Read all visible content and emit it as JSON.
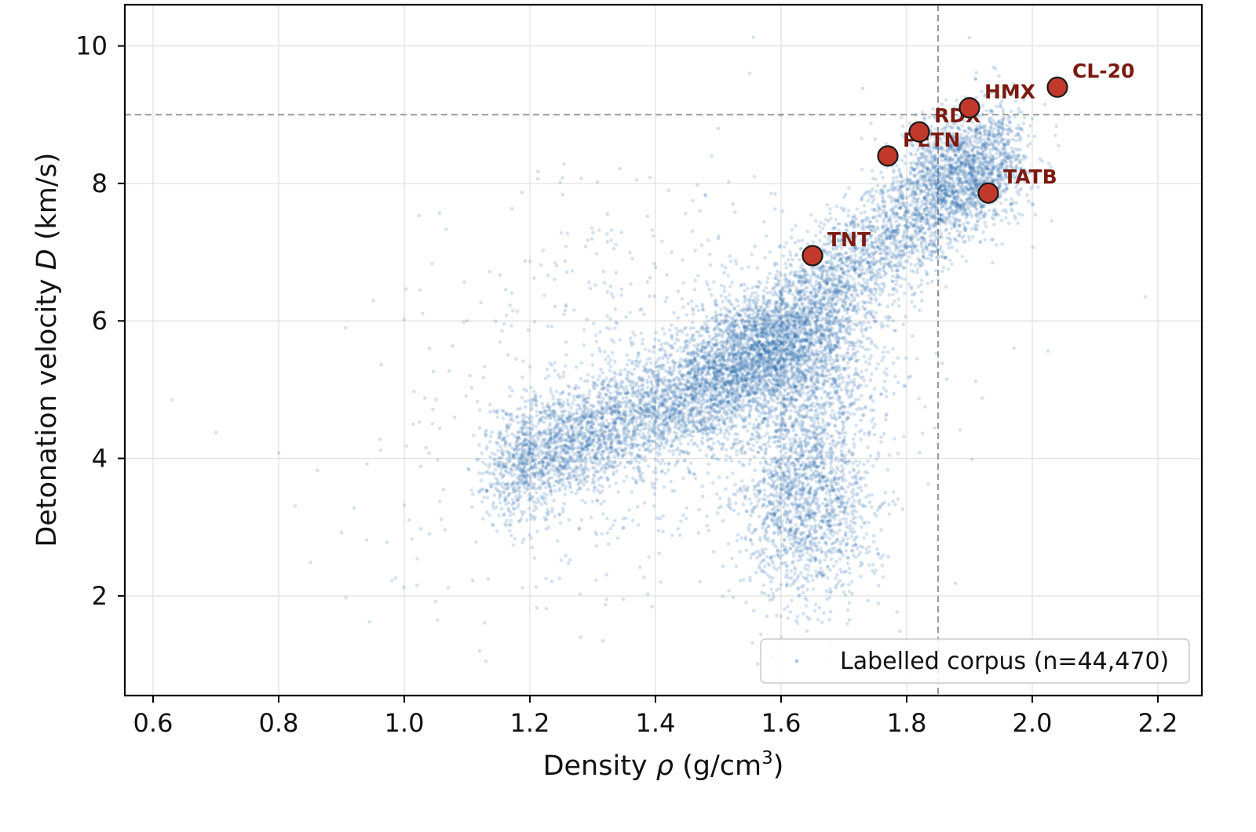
{
  "chart_data": {
    "type": "scatter",
    "xlabel_main": "Density ",
    "xlabel_symbol": "ρ",
    "xlabel_unit": " (g/cm",
    "xlabel_sup": "3",
    "xlabel_close": ")",
    "ylabel_main": "Detonation velocity ",
    "ylabel_symbol": "D",
    "ylabel_unit": " (km/s)",
    "xlim": [
      0.555,
      2.27
    ],
    "ylim": [
      0.55,
      10.6
    ],
    "x_ticks": [
      0.6,
      0.8,
      1.0,
      1.2,
      1.4,
      1.6,
      1.8,
      2.0,
      2.2
    ],
    "x_tick_labels": [
      "0.6",
      "0.8",
      "1.0",
      "1.2",
      "1.4",
      "1.6",
      "1.8",
      "2.0",
      "2.2"
    ],
    "y_ticks": [
      2,
      4,
      6,
      8,
      10
    ],
    "y_tick_labels": [
      "2",
      "4",
      "6",
      "8",
      "10"
    ],
    "grid": true,
    "reference_lines": {
      "x": 1.85,
      "y": 9.0
    },
    "legend": {
      "label": "Labelled corpus (n=44,470)",
      "placement": "lower-right"
    },
    "corpus_color": "#2b6cb0",
    "marker_color": "#c0392b",
    "marker_label_color": "#7b1a10",
    "corpus_point_count": 44470,
    "corpus_clusters": [
      {
        "kind": "band",
        "x_range": [
          1.15,
          1.5
        ],
        "y_at_start": 3.8,
        "y_at_end": 5.1,
        "spread": 0.42,
        "weight": 0.24
      },
      {
        "kind": "blob",
        "center": [
          1.6,
          5.4
        ],
        "sd": [
          0.07,
          0.5
        ],
        "weight": 0.16
      },
      {
        "kind": "band",
        "x_range": [
          1.48,
          1.97
        ],
        "y_at_start": 5.0,
        "y_at_end": 8.6,
        "spread": 0.45,
        "weight": 0.32
      },
      {
        "kind": "blob",
        "center": [
          1.64,
          3.4
        ],
        "sd": [
          0.055,
          0.75
        ],
        "weight": 0.14
      },
      {
        "kind": "blob",
        "center": [
          1.88,
          8.2
        ],
        "sd": [
          0.05,
          0.38
        ],
        "weight": 0.07
      },
      {
        "kind": "blob",
        "center": [
          1.45,
          5.6
        ],
        "sd": [
          0.2,
          1.2
        ],
        "weight": 0.05
      },
      {
        "kind": "blob",
        "center": [
          1.3,
          3.6
        ],
        "sd": [
          0.18,
          1.0
        ],
        "weight": 0.02
      }
    ],
    "corpus_outliers": [
      [
        0.63,
        4.85
      ],
      [
        0.7,
        4.38
      ],
      [
        0.8,
        4.08
      ],
      [
        0.9,
        2.92
      ],
      [
        0.92,
        3.28
      ],
      [
        1.0,
        6.02
      ],
      [
        1.0,
        3.32
      ],
      [
        1.02,
        2.15
      ],
      [
        1.04,
        5.6
      ],
      [
        1.05,
        1.92
      ],
      [
        1.1,
        6.0
      ],
      [
        1.12,
        1.2
      ],
      [
        1.55,
        9.6
      ],
      [
        1.73,
        9.38
      ],
      [
        1.9,
        10.12
      ],
      [
        2.02,
        9.15
      ],
      [
        2.18,
        6.35
      ],
      [
        1.37,
        8.05
      ],
      [
        1.25,
        7.28
      ],
      [
        1.33,
        7.32
      ],
      [
        1.07,
        2.12
      ],
      [
        1.13,
        1.05
      ]
    ],
    "labelled_compounds": [
      {
        "name": "TNT",
        "x": 1.65,
        "y": 6.95
      },
      {
        "name": "PETN",
        "x": 1.77,
        "y": 8.4
      },
      {
        "name": "RDX",
        "x": 1.82,
        "y": 8.75
      },
      {
        "name": "HMX",
        "x": 1.9,
        "y": 9.1
      },
      {
        "name": "TATB",
        "x": 1.93,
        "y": 7.86
      },
      {
        "name": "CL-20",
        "x": 2.04,
        "y": 9.4
      }
    ]
  }
}
